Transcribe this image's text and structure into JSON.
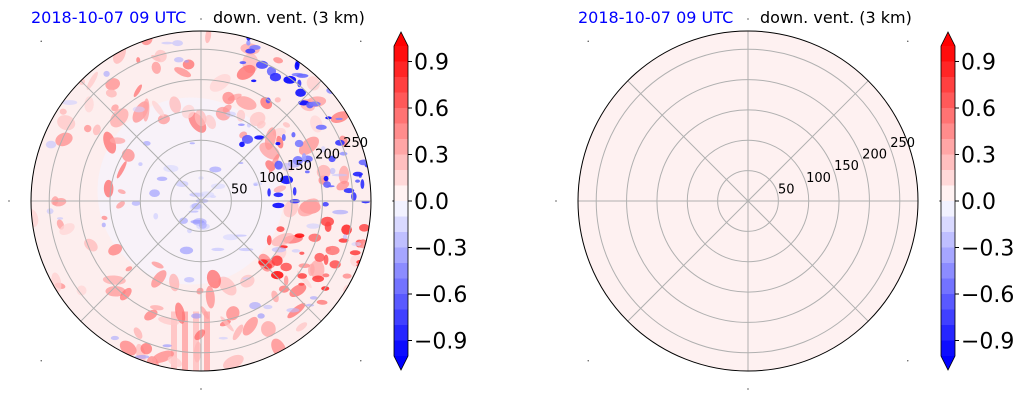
{
  "chart_data": [
    {
      "type": "heatmap",
      "projection": "polar",
      "title_left": "2018-10-07 09 UTC",
      "title_right": "down. vent. (3 km)",
      "radial_ticks": [
        "50",
        "100",
        "150",
        "200",
        "250"
      ],
      "radial_values": [
        50,
        100,
        150,
        200,
        250
      ],
      "angular_gridlines_deg": [
        0,
        45,
        90,
        135,
        180,
        225,
        270,
        315
      ],
      "colorbar": {
        "ticks": [
          "0.9",
          "0.6",
          "0.3",
          "0.0",
          "−0.3",
          "−0.6",
          "−0.9"
        ],
        "tick_values": [
          0.9,
          0.6,
          0.3,
          0.0,
          -0.3,
          -0.6,
          -0.9
        ],
        "range": [
          -1.0,
          1.0
        ],
        "colormap": "bwr",
        "extend": "both"
      },
      "field_description_values": "mixed positive and negative downward ventilation anomalies",
      "pos_color": "#ff0000",
      "neg_color": "#0000ff"
    },
    {
      "type": "heatmap",
      "projection": "polar",
      "title_left": "2018-10-07 09 UTC",
      "title_right": "down. vent. (3 km)",
      "radial_ticks": [
        "50",
        "100",
        "150",
        "200",
        "250"
      ],
      "radial_values": [
        50,
        100,
        150,
        200,
        250
      ],
      "angular_gridlines_deg": [
        0,
        45,
        90,
        135,
        180,
        225,
        270,
        315
      ],
      "colorbar": {
        "ticks": [
          "0.9",
          "0.6",
          "0.3",
          "0.0",
          "−0.3",
          "−0.6",
          "−0.9"
        ],
        "tick_values": [
          0.9,
          0.6,
          0.3,
          0.0,
          -0.3,
          -0.6,
          -0.9
        ],
        "range": [
          -1.0,
          1.0
        ],
        "colormap": "bwr",
        "extend": "both"
      },
      "uniform_value": 0.05,
      "fill_color": "#fef1f1"
    }
  ]
}
